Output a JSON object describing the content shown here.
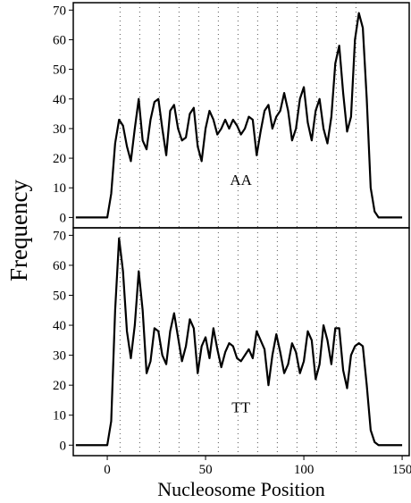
{
  "chart_data": [
    {
      "type": "line",
      "ylabel": "Frequency",
      "x": [
        -16,
        -14,
        -12,
        -10,
        -8,
        -6,
        -4,
        -2,
        0,
        2,
        4,
        6,
        8,
        10,
        12,
        14,
        16,
        18,
        20,
        22,
        24,
        26,
        28,
        30,
        32,
        34,
        36,
        38,
        40,
        42,
        44,
        46,
        48,
        50,
        52,
        54,
        56,
        58,
        60,
        62,
        64,
        66,
        68,
        70,
        72,
        74,
        76,
        78,
        80,
        82,
        84,
        86,
        88,
        90,
        92,
        94,
        96,
        98,
        100,
        102,
        104,
        106,
        108,
        110,
        112,
        114,
        116,
        118,
        120,
        122,
        124,
        126,
        128,
        130,
        132,
        134,
        136,
        138,
        140,
        142,
        144,
        146,
        148,
        150
      ],
      "series": [
        {
          "name": "AA",
          "color": "#000000",
          "values": [
            0,
            0,
            0,
            0,
            0,
            0,
            0,
            0,
            0,
            8,
            25,
            33,
            31,
            24,
            19,
            30,
            40,
            26,
            23,
            33,
            39,
            40,
            30,
            21,
            36,
            38,
            30,
            26,
            27,
            35,
            37,
            24,
            19,
            30,
            36,
            33,
            28,
            30,
            33,
            30,
            33,
            31,
            28,
            30,
            34,
            33,
            21,
            29,
            36,
            38,
            30,
            34,
            36,
            42,
            36,
            26,
            30,
            40,
            44,
            32,
            26,
            36,
            40,
            30,
            25,
            34,
            52,
            58,
            42,
            29,
            34,
            60,
            69,
            64,
            40,
            10,
            2,
            0,
            0,
            0,
            0,
            0,
            0,
            0
          ]
        }
      ],
      "xlim": [
        -17.3,
        153.6
      ],
      "ylim": [
        -3.5,
        72.5
      ],
      "yticks": [
        0,
        10,
        20,
        30,
        40,
        50,
        60,
        70
      ],
      "vlines": [
        6.5,
        16.5,
        26.5,
        36.5,
        46.5,
        56.5,
        66.5,
        76.5,
        86.5,
        96.5,
        106.5,
        116.5,
        126.5
      ]
    },
    {
      "type": "line",
      "xlabel": "Nucleosome Position",
      "x": [
        -16,
        -14,
        -12,
        -10,
        -8,
        -6,
        -4,
        -2,
        0,
        2,
        4,
        6,
        8,
        10,
        12,
        14,
        16,
        18,
        20,
        22,
        24,
        26,
        28,
        30,
        32,
        34,
        36,
        38,
        40,
        42,
        44,
        46,
        48,
        50,
        52,
        54,
        56,
        58,
        60,
        62,
        64,
        66,
        68,
        70,
        72,
        74,
        76,
        78,
        80,
        82,
        84,
        86,
        88,
        90,
        92,
        94,
        96,
        98,
        100,
        102,
        104,
        106,
        108,
        110,
        112,
        114,
        116,
        118,
        120,
        122,
        124,
        126,
        128,
        130,
        132,
        134,
        136,
        138,
        140,
        142,
        144,
        146,
        148,
        150
      ],
      "series": [
        {
          "name": "TT",
          "color": "#000000",
          "values": [
            0,
            0,
            0,
            0,
            0,
            0,
            0,
            0,
            0,
            8,
            45,
            69,
            58,
            38,
            29,
            40,
            58,
            45,
            24,
            28,
            39,
            38,
            30,
            27,
            38,
            44,
            36,
            28,
            33,
            42,
            39,
            24,
            33,
            36,
            29,
            39,
            32,
            26,
            31,
            34,
            33,
            29,
            28,
            30,
            32,
            29,
            38,
            35,
            32,
            20,
            30,
            37,
            31,
            24,
            27,
            34,
            31,
            24,
            28,
            38,
            35,
            22,
            27,
            40,
            35,
            27,
            39,
            39,
            25,
            19,
            30,
            33,
            34,
            33,
            20,
            5,
            1,
            0,
            0,
            0,
            0,
            0,
            0,
            0
          ]
        }
      ],
      "xlim": [
        -17.3,
        153.6
      ],
      "ylim": [
        -3.5,
        72.5
      ],
      "yticks": [
        0,
        10,
        20,
        30,
        40,
        50,
        60,
        70
      ],
      "xticks": [
        0,
        50,
        100,
        150
      ],
      "vlines": [
        6.5,
        16.5,
        26.5,
        36.5,
        46.5,
        56.5,
        66.5,
        76.5,
        86.5,
        96.5,
        106.5,
        116.5,
        126.5
      ]
    }
  ]
}
